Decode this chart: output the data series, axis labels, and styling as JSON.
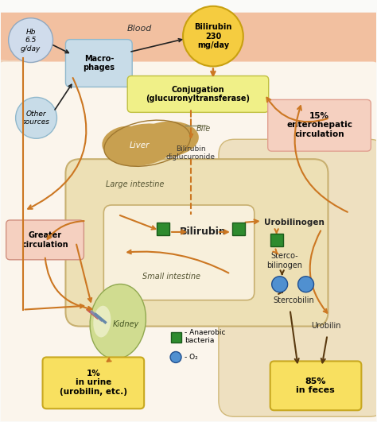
{
  "bg_color": "#FAFAF8",
  "skin_color_top": "#F2C9A8",
  "skin_color_mid": "#F5DCC0",
  "intestine_fill": "#EDE0B5",
  "intestine_edge": "#C8B878",
  "liver_fill": "#C8A050",
  "liver_edge": "#A07830",
  "kidney_fill": "#D0DC90",
  "kidney_edge": "#90A850",
  "macrophage_fill": "#C8DCE8",
  "macrophage_edge": "#90B8CC",
  "hb_fill": "#D0DCEC",
  "hb_edge": "#90A8C0",
  "other_fill": "#C8DCE8",
  "other_edge": "#90B8CC",
  "conj_fill": "#F0F088",
  "conj_edge": "#C0C040",
  "bil_circle_fill": "#F5CC40",
  "bil_circle_edge": "#C8A010",
  "box15_fill": "#F5D0C0",
  "box15_edge": "#E0A090",
  "box_yellow_fill": "#F8E060",
  "box_yellow_edge": "#C8A820",
  "green_sq": "#2E8B2E",
  "green_sq_edge": "#1A5A1A",
  "blue_circ": "#5090D0",
  "blue_circ_edge": "#205090",
  "orange": "#CC7722",
  "dark_brown": "#5A3A10",
  "greater_box_fill": "#F5D0C0",
  "greater_box_edge": "#D09080",
  "annotations": {
    "hb": "Hb\n6.5\ng/day",
    "blood": "Blood",
    "macrophages": "Macro-\nphages",
    "other_sources": "Other\nsources",
    "bilirubin_circle": "Bilirubin\n230\nmg/day",
    "conjugation": "Conjugation\n(glucuronyltransferase)",
    "liver": "Liver",
    "bile": "Bile",
    "bilirubin_digluc": "Bilirubin\ndiglucuronide",
    "large_intestine": "Large intestine",
    "small_intestine": "Small intestine",
    "bilirubin_center": "Bilirubin",
    "urobilinogen": "Urobilinogen",
    "stercobilinogen": "Sterco-\nbilinogen",
    "stercobilin": "Stercobilin",
    "urobilin": "Urobilin",
    "kidney": "Kidney",
    "greater_circ": "Greater\ncirculation",
    "pct15": "15%\nenterohepatic\ncirculation",
    "pct1": "1%\nin urine\n(urobilin, etc.)",
    "pct85": "85%\nin feces",
    "anaerobic": "Anaerobic\nbacteria",
    "o2": "O₂"
  }
}
